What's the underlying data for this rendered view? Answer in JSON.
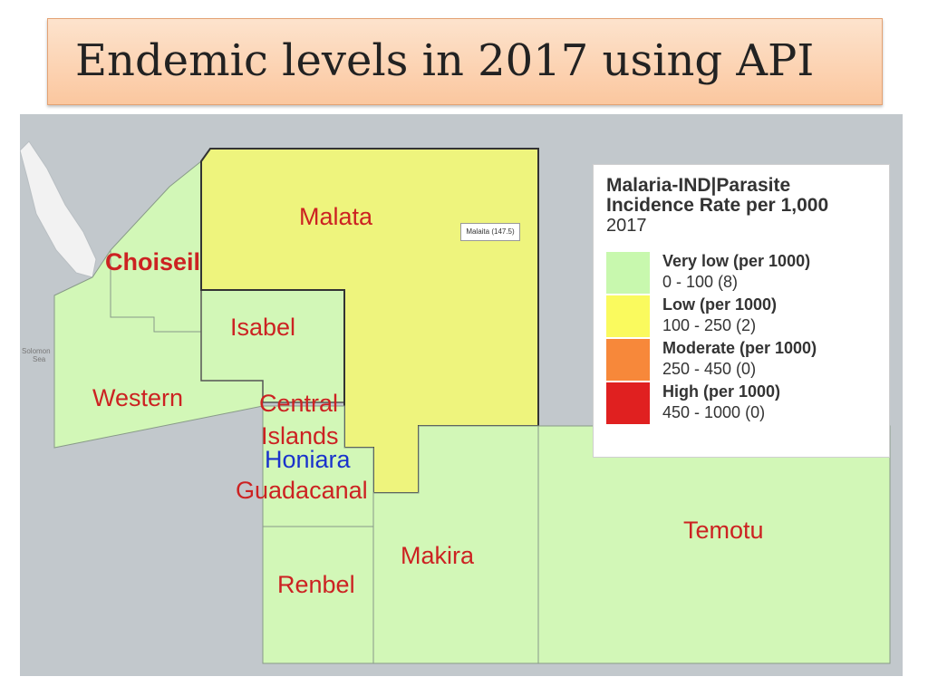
{
  "title": "Endemic levels in 2017 using API",
  "map": {
    "sea_label": [
      "Solomon",
      "Sea"
    ],
    "tooltip": "Malaita (147.5)",
    "provinces": [
      {
        "name": "Malata",
        "color": "#cc2222"
      },
      {
        "name": "Choiseil",
        "color": "#cc2222"
      },
      {
        "name": "Isabel",
        "color": "#cc2222"
      },
      {
        "name": "Western",
        "color": "#cc2222"
      },
      {
        "name": "Central",
        "color": "#cc2222"
      },
      {
        "name": "Islands",
        "color": "#cc2222"
      },
      {
        "name": "Honiara",
        "color": "#1a33cc"
      },
      {
        "name": "Guadacanal",
        "color": "#cc2222"
      },
      {
        "name": "Makira",
        "color": "#cc2222"
      },
      {
        "name": "Temotu",
        "color": "#cc2222"
      },
      {
        "name": "Renbel",
        "color": "#cc2222"
      }
    ],
    "fill_colors": {
      "very_low": "#d2f7b7",
      "low": "#eef47d",
      "sea": "#c2c8cc",
      "land": "#f2f2f2"
    }
  },
  "legend": {
    "title_line1": "Malaria-IND|Parasite",
    "title_line2": "Incidence Rate per 1,000",
    "year": "2017",
    "items": [
      {
        "label": "Very low (per 1000)",
        "range": "0 - 100 (8)",
        "color": "#c8f8ae"
      },
      {
        "label": "Low (per 1000)",
        "range": "100 - 250 (2)",
        "color": "#fafa5e"
      },
      {
        "label": "Moderate (per 1000)",
        "range": "250 - 450 (0)",
        "color": "#f7883a"
      },
      {
        "label": "High (per 1000)",
        "range": "450 - 1000 (0)",
        "color": "#e02020"
      }
    ]
  }
}
